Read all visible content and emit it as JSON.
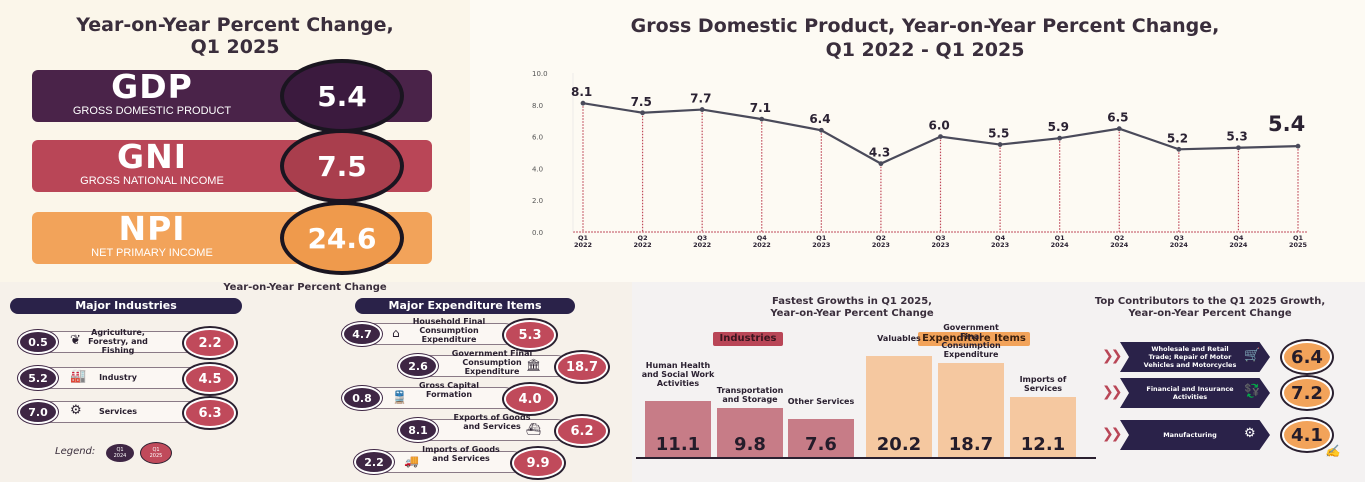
{
  "kpi": {
    "title_line1": "Year-on-Year Percent Change,",
    "title_line2": "Q1 2025",
    "cards": [
      {
        "abbr": "GDP",
        "name": "GROSS DOMESTIC PRODUCT",
        "value": "5.4",
        "color": "#4a2349",
        "circle": "#3b1a3e"
      },
      {
        "abbr": "GNI",
        "name": "GROSS NATIONAL INCOME",
        "value": "7.5",
        "color": "#b94657",
        "circle": "#a93e4d"
      },
      {
        "abbr": "NPI",
        "name": "NET PRIMARY INCOME",
        "value": "24.6",
        "color": "#f2a35a",
        "circle": "#ef9a4c"
      }
    ]
  },
  "chart_data": [
    {
      "type": "line",
      "title_line1": "Gross Domestic Product, Year-on-Year Percent Change,",
      "title_line2": "Q1 2022 - Q1 2025",
      "categories": [
        "Q1 2022",
        "Q2 2022",
        "Q3 2022",
        "Q4 2022",
        "Q1 2023",
        "Q2 2023",
        "Q3 2023",
        "Q4 2023",
        "Q1 2024",
        "Q2 2024",
        "Q3 2024",
        "Q4 2024",
        "Q1 2025"
      ],
      "tick_top": [
        "Q1",
        "Q2",
        "Q3",
        "Q4",
        "Q1",
        "Q2",
        "Q3",
        "Q4",
        "Q1",
        "Q2",
        "Q3",
        "Q4",
        "Q1"
      ],
      "tick_bottom": [
        "2022",
        "2022",
        "2022",
        "2022",
        "2023",
        "2023",
        "2023",
        "2023",
        "2024",
        "2024",
        "2024",
        "2024",
        "2025"
      ],
      "values": [
        8.1,
        7.5,
        7.7,
        7.1,
        6.4,
        4.3,
        6.0,
        5.5,
        5.9,
        6.5,
        5.2,
        5.3,
        5.4
      ],
      "value_labels": [
        "8.1",
        "7.5",
        "7.7",
        "7.1",
        "6.4",
        "4.3",
        "6.0",
        "5.5",
        "5.9",
        "6.5",
        "5.2",
        "5.3",
        "5.4"
      ],
      "yticks": [
        "0.0",
        "2.0",
        "4.0",
        "6.0",
        "8.0",
        "10.0"
      ],
      "ylim": [
        0,
        10
      ],
      "line_color": "#4a4a5a",
      "drop_color": "#c04a5b"
    },
    {
      "type": "table",
      "title": "Year-on-Year Percent Change",
      "industries": {
        "header": "Major Industries",
        "rows": [
          {
            "label": "Agriculture, Forestry, and Fishing",
            "prev": "0.5",
            "curr": "2.2",
            "icon": "plant-icon"
          },
          {
            "label": "Industry",
            "prev": "5.2",
            "curr": "4.5",
            "icon": "factory-icon"
          },
          {
            "label": "Services",
            "prev": "7.0",
            "curr": "6.3",
            "icon": "gear-hand-icon"
          }
        ]
      },
      "expenditure": {
        "header": "Major Expenditure Items",
        "rows": [
          {
            "label": "Household Final Consumption Expenditure",
            "prev": "4.7",
            "curr": "5.3",
            "icon": "house-icon"
          },
          {
            "label": "Government Final Consumption Expenditure",
            "prev": "2.6",
            "curr": "18.7",
            "icon": "bank-icon"
          },
          {
            "label": "Gross Capital Formation",
            "prev": "0.8",
            "curr": "4.0",
            "icon": "train-icon"
          },
          {
            "label": "Exports of Goods and Services",
            "prev": "8.1",
            "curr": "6.2",
            "icon": "ship-icon"
          },
          {
            "label": "Imports of Goods and Services",
            "prev": "2.2",
            "curr": "9.9",
            "icon": "truck-icon"
          }
        ]
      },
      "legend": {
        "label": "Legend:",
        "prev_line1": "Q1",
        "prev_line2": "2024",
        "curr_line1": "Q1",
        "curr_line2": "2025"
      }
    },
    {
      "type": "bar",
      "title_line1": "Fastest Growths in Q1 2025,",
      "title_line2": "Year-on-Year Percent Change",
      "groups": [
        {
          "name": "Industries",
          "color": "#c77c87",
          "tag_color": "#b94657"
        },
        {
          "name": "Expenditure Items",
          "color": "#f5c8a0",
          "tag_color": "#f2a35a"
        }
      ],
      "categories": [
        "Human Health and Social Work Activities",
        "Transportation and Storage",
        "Other Services",
        "Valuables",
        "Government Final Consumption Expenditure",
        "Imports of Services"
      ],
      "values": [
        11.1,
        9.8,
        7.6,
        20.2,
        18.7,
        12.1
      ],
      "value_labels": [
        "11.1",
        "9.8",
        "7.6",
        "20.2",
        "18.7",
        "12.1"
      ],
      "group_index": [
        0,
        0,
        0,
        1,
        1,
        1
      ]
    },
    {
      "type": "bar",
      "title_line1": "Top Contributors to the Q1 2025 Growth,",
      "title_line2": "Year-on-Year Percent Change",
      "categories": [
        "Wholesale and Retail Trade; Repair of Motor Vehicles and Motorcycles",
        "Financial and Insurance Activities",
        "Manufacturing"
      ],
      "values": [
        6.4,
        7.2,
        4.1
      ],
      "value_labels": [
        "6.4",
        "7.2",
        "4.1"
      ]
    }
  ]
}
